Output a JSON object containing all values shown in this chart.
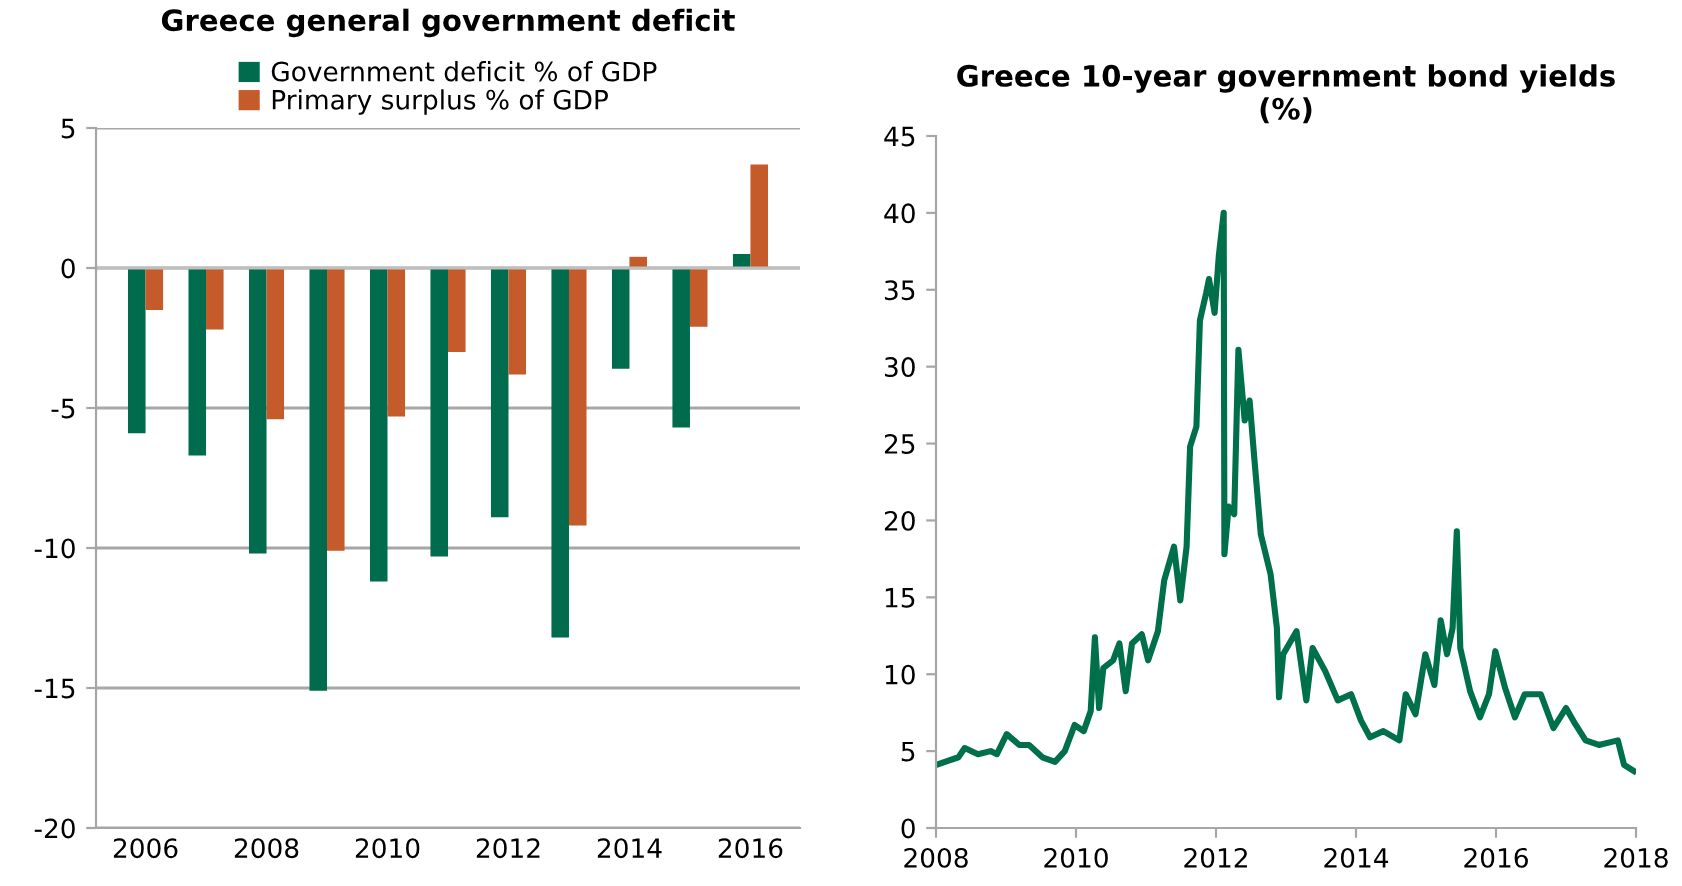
{
  "chart_data": [
    {
      "type": "bar",
      "title": "Greece general government deficit",
      "categories": [
        "2006",
        null,
        "2008",
        null,
        "2010",
        null,
        "2012",
        null,
        "2014",
        null,
        "2016"
      ],
      "series": [
        {
          "name": "Government deficit % of GDP",
          "color": "#006b4d",
          "values": [
            -5.9,
            -6.7,
            -10.2,
            -15.1,
            -11.2,
            -10.3,
            -8.9,
            -13.2,
            -3.6,
            -5.7,
            0.5
          ]
        },
        {
          "name": "Primary surplus % of GDP",
          "color": "#c55a2b",
          "values": [
            -1.5,
            -2.2,
            -5.4,
            -10.1,
            -5.3,
            -3.0,
            -3.8,
            -9.2,
            0.4,
            -2.1,
            3.7
          ]
        }
      ],
      "ylim": [
        -20,
        5
      ],
      "yticks": [
        -20,
        -15,
        -10,
        -5,
        0,
        5
      ],
      "grid": "y",
      "legend": "top"
    },
    {
      "type": "line",
      "title": "Greece 10-year government bond yields\n(%)",
      "x": [
        2008.0,
        2008.32,
        2008.41,
        2008.6,
        2008.78,
        2008.87,
        2009.01,
        2009.19,
        2009.33,
        2009.52,
        2009.7,
        2009.84,
        2009.98,
        2010.11,
        2010.21,
        2010.27,
        2010.33,
        2010.39,
        2010.53,
        2010.62,
        2010.71,
        2010.8,
        2010.94,
        2011.03,
        2011.17,
        2011.26,
        2011.4,
        2011.49,
        2011.58,
        2011.63,
        2011.72,
        2011.77,
        2011.86,
        2011.9,
        2011.98,
        2012.04,
        2012.11,
        2012.12,
        2012.18,
        2012.26,
        2012.32,
        2012.41,
        2012.48,
        2012.55,
        2012.64,
        2012.78,
        2012.87,
        2012.9,
        2012.96,
        2013.15,
        2013.29,
        2013.38,
        2013.56,
        2013.74,
        2013.93,
        2014.07,
        2014.2,
        2014.39,
        2014.62,
        2014.71,
        2014.85,
        2014.99,
        2015.12,
        2015.21,
        2015.3,
        2015.38,
        2015.44,
        2015.49,
        2015.63,
        2015.77,
        2015.9,
        2015.99,
        2016.13,
        2016.27,
        2016.41,
        2016.64,
        2016.82,
        2017.0,
        2017.14,
        2017.28,
        2017.47,
        2017.74,
        2017.83,
        2017.97
      ],
      "series": [
        {
          "color": "#00704a",
          "values": [
            4.1,
            4.6,
            5.2,
            4.8,
            5.0,
            4.8,
            6.1,
            5.4,
            5.4,
            4.6,
            4.3,
            5.0,
            6.7,
            6.3,
            7.6,
            12.4,
            7.8,
            10.4,
            10.9,
            12.0,
            8.9,
            12.0,
            12.6,
            10.9,
            12.8,
            16.1,
            18.3,
            14.8,
            18.3,
            24.8,
            26.1,
            33.0,
            34.8,
            35.7,
            33.5,
            37.2,
            40.0,
            17.8,
            20.9,
            20.4,
            31.1,
            26.5,
            27.8,
            23.9,
            19.1,
            16.5,
            13.0,
            8.5,
            11.3,
            12.8,
            8.3,
            11.7,
            10.2,
            8.3,
            8.7,
            7.0,
            5.9,
            6.3,
            5.7,
            8.7,
            7.4,
            11.3,
            9.3,
            13.5,
            11.3,
            13.0,
            19.3,
            11.7,
            8.9,
            7.2,
            8.7,
            11.5,
            9.1,
            7.2,
            8.7,
            8.7,
            6.5,
            7.8,
            6.7,
            5.7,
            5.4,
            5.7,
            4.1,
            3.7
          ]
        }
      ],
      "xlim": [
        2008,
        2018
      ],
      "xticks": [
        2008,
        2010,
        2012,
        2014,
        2016,
        2018
      ],
      "ylim": [
        0,
        45
      ],
      "yticks": [
        0,
        5,
        10,
        15,
        20,
        25,
        30,
        35,
        40,
        45
      ]
    }
  ]
}
